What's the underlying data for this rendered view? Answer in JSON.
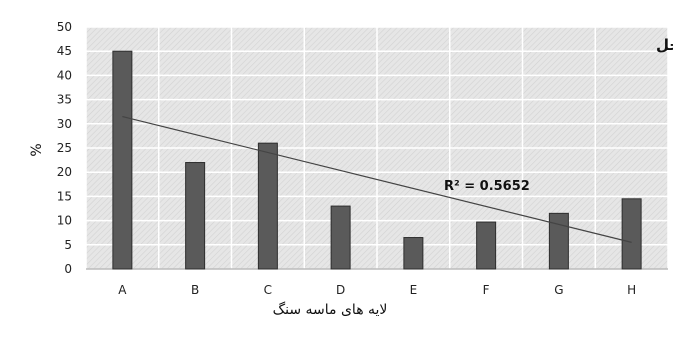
{
  "chart_data": {
    "type": "bar",
    "title": "تخلخل",
    "xlabel": "لایه های ماسه سنگ",
    "ylabel": "%",
    "categories": [
      "A",
      "B",
      "C",
      "D",
      "E",
      "F",
      "G",
      "H"
    ],
    "values": [
      45,
      22,
      26,
      13,
      6.5,
      9.7,
      11.5,
      14.5
    ],
    "ylim": [
      0,
      50
    ],
    "yticks": [
      0,
      5,
      10,
      15,
      20,
      25,
      30,
      35,
      40,
      45,
      50
    ],
    "grid": true,
    "trendline": {
      "type": "linear",
      "label": "R² = 0.5652",
      "start": {
        "x": "A",
        "y": 31.5
      },
      "end": {
        "x": "H",
        "y": 5.5
      }
    },
    "colors": {
      "bar": "#5a5a5a",
      "bar_border": "#2e2e2e",
      "plot_background": "#e4e4e4",
      "grid": "#ffffff",
      "trendline": "#444444"
    }
  }
}
